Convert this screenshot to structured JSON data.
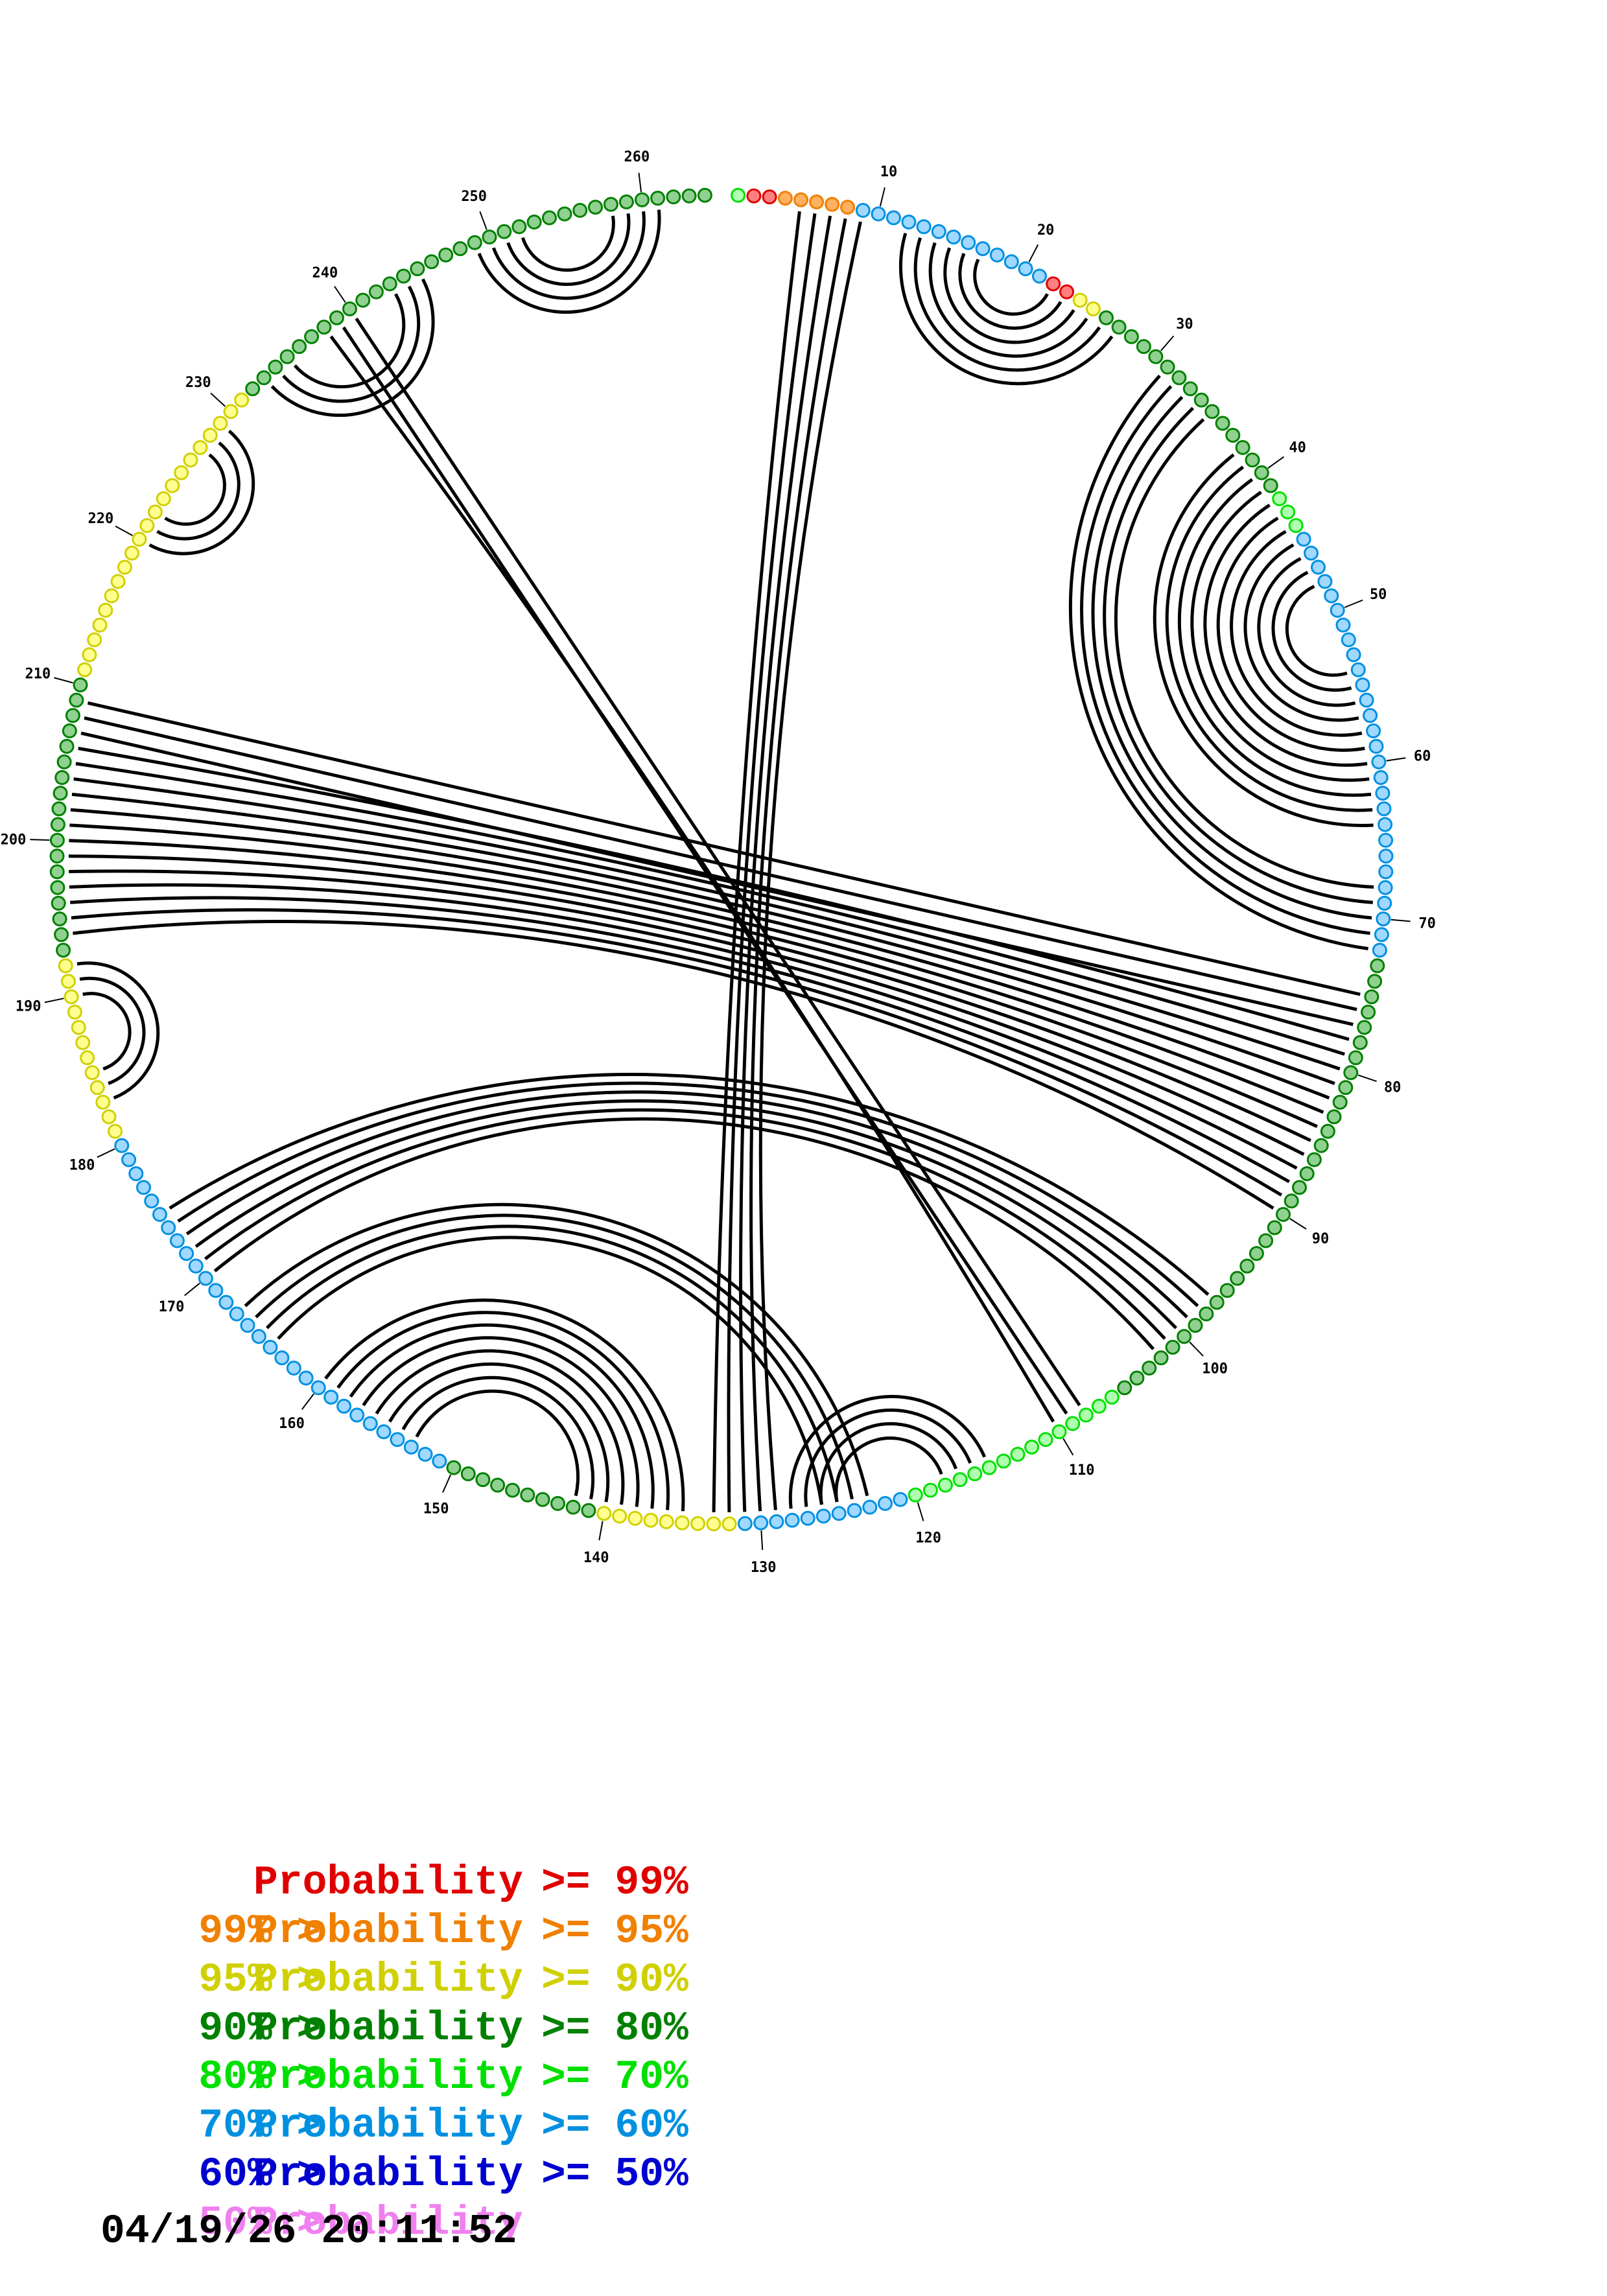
{
  "sequence": {
    "length": 264,
    "tick_labels": [
      "10",
      "20",
      "30",
      "40",
      "50",
      "60",
      "70",
      "80",
      "90",
      "100",
      "110",
      "120",
      "130",
      "140",
      "150",
      "160",
      "170",
      "180",
      "190",
      "200",
      "210",
      "220",
      "230",
      "240",
      "250",
      "260"
    ],
    "nucleotide_probability_classes": "5112222266666666666661133444444444444444455566666666666666666666666666664444444444444444444444444444444445555555555555556666666666633333333344444444446666666666666666666666666666663333333333334444444444444444443333333333333333333334444444444444444444444444444444444444444444444"
  },
  "pairs": [
    [
      5,
      133
    ],
    [
      6,
      132
    ],
    [
      7,
      131
    ],
    [
      8,
      130
    ],
    [
      9,
      129
    ],
    [
      12,
      27
    ],
    [
      13,
      26
    ],
    [
      14,
      25
    ],
    [
      15,
      24
    ],
    [
      16,
      23
    ],
    [
      17,
      22
    ],
    [
      31,
      72
    ],
    [
      32,
      71
    ],
    [
      33,
      70
    ],
    [
      34,
      69
    ],
    [
      35,
      68
    ],
    [
      38,
      64
    ],
    [
      39,
      63
    ],
    [
      40,
      62
    ],
    [
      41,
      61
    ],
    [
      42,
      60
    ],
    [
      43,
      59
    ],
    [
      44,
      58
    ],
    [
      45,
      57
    ],
    [
      46,
      56
    ],
    [
      47,
      55
    ],
    [
      48,
      54
    ],
    [
      75,
      209
    ],
    [
      76,
      208
    ],
    [
      77,
      207
    ],
    [
      78,
      206
    ],
    [
      79,
      205
    ],
    [
      80,
      204
    ],
    [
      81,
      203
    ],
    [
      82,
      202
    ],
    [
      83,
      201
    ],
    [
      84,
      200
    ],
    [
      85,
      199
    ],
    [
      86,
      198
    ],
    [
      87,
      197
    ],
    [
      88,
      196
    ],
    [
      89,
      195
    ],
    [
      90,
      194
    ],
    [
      97,
      175
    ],
    [
      98,
      174
    ],
    [
      99,
      173
    ],
    [
      100,
      172
    ],
    [
      101,
      171
    ],
    [
      102,
      170
    ],
    [
      108,
      240
    ],
    [
      109,
      239
    ],
    [
      110,
      238
    ],
    [
      115,
      128
    ],
    [
      116,
      127
    ],
    [
      117,
      126
    ],
    [
      118,
      125
    ],
    [
      123,
      167
    ],
    [
      124,
      166
    ],
    [
      125,
      165
    ],
    [
      126,
      164
    ],
    [
      135,
      160
    ],
    [
      136,
      159
    ],
    [
      137,
      158
    ],
    [
      138,
      157
    ],
    [
      139,
      156
    ],
    [
      140,
      155
    ],
    [
      141,
      154
    ],
    [
      142,
      153
    ],
    [
      183,
      192
    ],
    [
      184,
      191
    ],
    [
      185,
      190
    ],
    [
      220,
      229
    ],
    [
      221,
      228
    ],
    [
      222,
      227
    ],
    [
      233,
      245
    ],
    [
      234,
      244
    ],
    [
      235,
      243
    ],
    [
      249,
      261
    ],
    [
      250,
      260
    ],
    [
      251,
      259
    ],
    [
      252,
      258
    ]
  ],
  "colors": {
    "red": "#e00000",
    "orange": "#f08000",
    "yellow": "#d0d000",
    "darkgreen": "#008000",
    "green": "#00e000",
    "cyan": "#0090e0",
    "blue": "#0000d0",
    "pink": "#f080f0",
    "red_fill": "#ff8080",
    "orange_fill": "#ffb060",
    "yellow_fill": "#ffff90",
    "darkgreen_fill": "#90d090",
    "green_fill": "#b0ffb0",
    "cyan_fill": "#a0d8ff",
    "blue_fill": "#9090ff",
    "pink_fill": "#ffd0ff"
  },
  "legend": [
    {
      "prefix": "",
      "label": "Probability",
      "suffix": ">= 99%",
      "color": "#e00000"
    },
    {
      "prefix": "99% >",
      "label": "Probability",
      "suffix": ">= 95%",
      "color": "#f08000"
    },
    {
      "prefix": "95% >",
      "label": "Probability",
      "suffix": ">= 90%",
      "color": "#d0d000"
    },
    {
      "prefix": "90% >",
      "label": "Probability",
      "suffix": ">= 80%",
      "color": "#008000"
    },
    {
      "prefix": "80% >",
      "label": "Probability",
      "suffix": ">= 70%",
      "color": "#00e000"
    },
    {
      "prefix": "70% >",
      "label": "Probability",
      "suffix": ">= 60%",
      "color": "#0090e0"
    },
    {
      "prefix": "60% >",
      "label": "Probability",
      "suffix": ">= 50%",
      "color": "#0000d0"
    },
    {
      "prefix": "50% >",
      "label": "Probability",
      "suffix": "",
      "color": "#f080f0"
    }
  ],
  "timestamp": "04/19/26 20:11:52"
}
